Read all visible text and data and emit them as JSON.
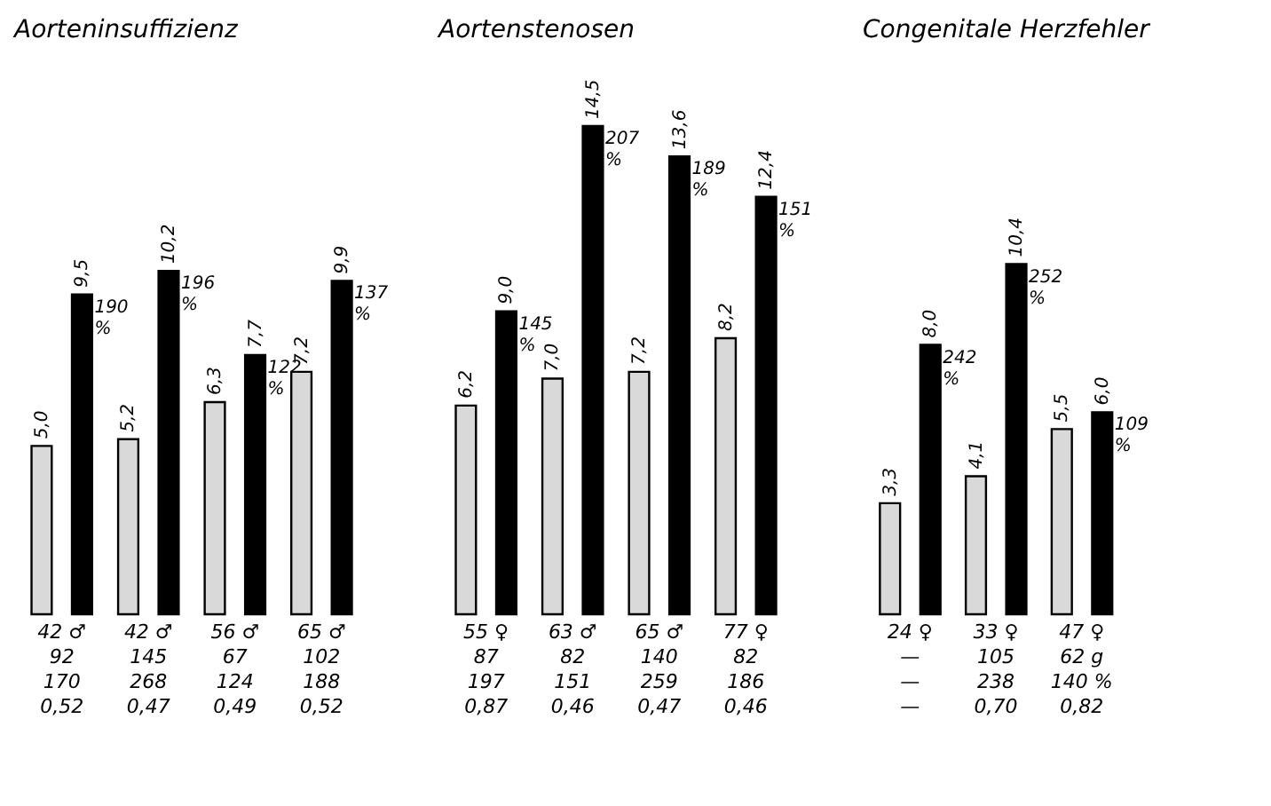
{
  "chart_data": [
    {
      "type": "bar",
      "title": "Aorteninsuffizienz",
      "categories": [
        "42 ♂\n92\n170\n0,52",
        "42 ♂\n145\n268\n0,47",
        "56 ♂\n67\n124\n0,49",
        "65 ♂\n102\n188\n0,52"
      ],
      "series": [
        {
          "color": "#d9d9d9",
          "values": [
            5.0,
            5.2,
            6.3,
            7.2
          ],
          "value_labels": [
            "5,0",
            "5,2",
            "6,3",
            "7,2"
          ]
        },
        {
          "color": "#000000",
          "values": [
            9.5,
            10.2,
            7.7,
            9.9
          ],
          "value_labels": [
            "9,5",
            "10,2",
            "7,7",
            "9,9"
          ]
        }
      ],
      "annotations": [
        "190 %",
        "196 %",
        "122 %",
        "137 %"
      ]
    },
    {
      "type": "bar",
      "title": "Aortenstenosen",
      "categories": [
        "55 ♀\n87\n197\n0,87",
        "63 ♂\n82\n151\n0,46",
        "65 ♂\n140\n259\n0,47",
        "77 ♀\n82\n186\n0,46"
      ],
      "series": [
        {
          "color": "#d9d9d9",
          "values": [
            6.2,
            7.0,
            7.2,
            8.2
          ],
          "value_labels": [
            "6,2",
            "7,0",
            "7,2",
            "8,2"
          ]
        },
        {
          "color": "#000000",
          "values": [
            9.0,
            14.5,
            13.6,
            12.4
          ],
          "value_labels": [
            "9,0",
            "14,5",
            "13,6",
            "12,4"
          ]
        }
      ],
      "annotations": [
        "145 %",
        "207 %",
        "189 %",
        "151 %"
      ]
    },
    {
      "type": "bar",
      "title": "Congenitale Herzfehler",
      "categories": [
        "24 ♀\n—\n—\n—",
        "33 ♀\n105\n238\n0,70",
        "47 ♀\n62 g\n140 %\n0,82"
      ],
      "series": [
        {
          "color": "#d9d9d9",
          "values": [
            3.3,
            4.1,
            5.5
          ],
          "value_labels": [
            "3,3",
            "4,1",
            "5,5"
          ]
        },
        {
          "color": "#000000",
          "values": [
            8.0,
            10.4,
            6.0
          ],
          "value_labels": [
            "8,0",
            "10,4",
            "6,0"
          ]
        }
      ],
      "annotations": [
        "242 %",
        "252 %",
        "109 %"
      ]
    }
  ]
}
